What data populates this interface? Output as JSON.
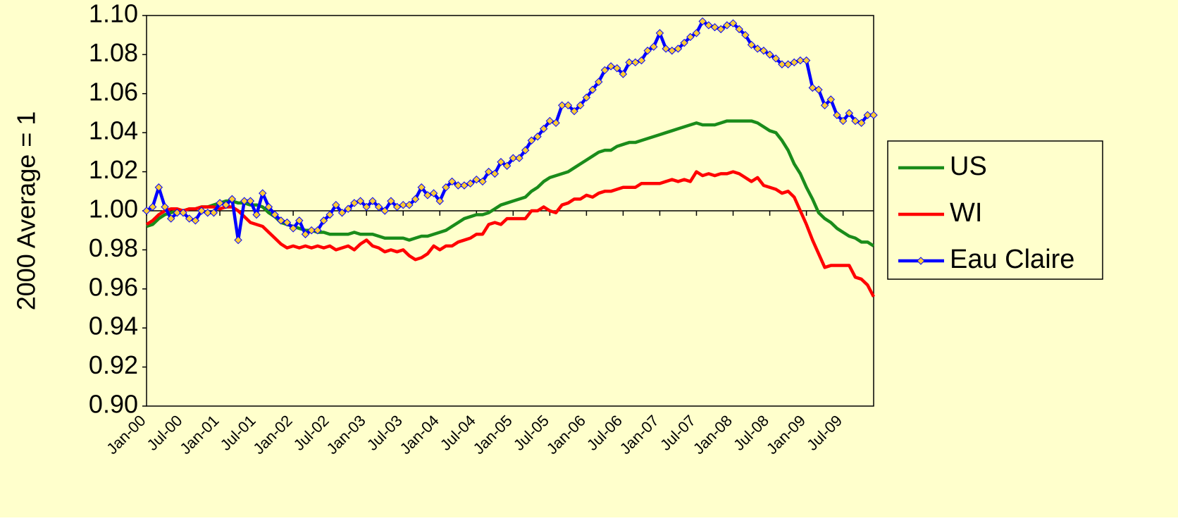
{
  "chart_data": {
    "type": "line",
    "y_label": "2000 Average = 1",
    "categories": [
      "Jan-00",
      null,
      null,
      null,
      null,
      null,
      "Jul-00",
      null,
      null,
      null,
      null,
      null,
      "Jan-01",
      null,
      null,
      null,
      null,
      null,
      "Jul-01",
      null,
      null,
      null,
      null,
      null,
      "Jan-02",
      null,
      null,
      null,
      null,
      null,
      "Jul-02",
      null,
      null,
      null,
      null,
      null,
      "Jan-03",
      null,
      null,
      null,
      null,
      null,
      "Jul-03",
      null,
      null,
      null,
      null,
      null,
      "Jan-04",
      null,
      null,
      null,
      null,
      null,
      "Jul-04",
      null,
      null,
      null,
      null,
      null,
      "Jan-05",
      null,
      null,
      null,
      null,
      null,
      "Jul-05",
      null,
      null,
      null,
      null,
      null,
      "Jan-06",
      null,
      null,
      null,
      null,
      null,
      "Jul-06",
      null,
      null,
      null,
      null,
      null,
      "Jan-07",
      null,
      null,
      null,
      null,
      null,
      "Jul-07",
      null,
      null,
      null,
      null,
      null,
      "Jan-08",
      null,
      null,
      null,
      null,
      null,
      "Jul-08",
      null,
      null,
      null,
      null,
      null,
      "Jan-09",
      null,
      null,
      null,
      null,
      null,
      "Jul-09",
      null,
      null,
      null,
      null,
      null
    ],
    "series": [
      {
        "name": "US",
        "color": "#1a8c1a",
        "values": [
          0.992,
          0.993,
          0.996,
          0.998,
          0.999,
          1.0,
          1.0,
          1.001,
          1.001,
          1.002,
          1.002,
          1.003,
          1.004,
          1.005,
          1.005,
          1.004,
          1.004,
          1.003,
          1.003,
          1.002,
          0.999,
          0.997,
          0.994,
          0.993,
          0.992,
          0.991,
          0.99,
          0.99,
          0.989,
          0.989,
          0.988,
          0.988,
          0.988,
          0.988,
          0.989,
          0.988,
          0.988,
          0.988,
          0.987,
          0.986,
          0.986,
          0.986,
          0.986,
          0.985,
          0.986,
          0.987,
          0.987,
          0.988,
          0.989,
          0.99,
          0.992,
          0.994,
          0.996,
          0.997,
          0.998,
          0.998,
          0.999,
          1.001,
          1.003,
          1.004,
          1.005,
          1.006,
          1.007,
          1.01,
          1.012,
          1.015,
          1.017,
          1.018,
          1.019,
          1.02,
          1.022,
          1.024,
          1.026,
          1.028,
          1.03,
          1.031,
          1.031,
          1.033,
          1.034,
          1.035,
          1.035,
          1.036,
          1.037,
          1.038,
          1.039,
          1.04,
          1.041,
          1.042,
          1.043,
          1.044,
          1.045,
          1.044,
          1.044,
          1.044,
          1.045,
          1.046,
          1.046,
          1.046,
          1.046,
          1.046,
          1.045,
          1.043,
          1.041,
          1.04,
          1.036,
          1.031,
          1.024,
          1.019,
          1.012,
          1.006,
          0.999,
          0.996,
          0.994,
          0.991,
          0.989,
          0.987,
          0.986,
          0.984,
          0.984,
          0.982
        ]
      },
      {
        "name": "WI",
        "color": "#ff0000",
        "values": [
          0.993,
          0.995,
          0.998,
          1.0,
          1.001,
          1.001,
          1.0,
          1.001,
          1.001,
          1.002,
          1.002,
          1.002,
          1.001,
          1.002,
          1.002,
          1.0,
          0.997,
          0.994,
          0.993,
          0.992,
          0.989,
          0.986,
          0.983,
          0.981,
          0.982,
          0.981,
          0.982,
          0.981,
          0.982,
          0.981,
          0.982,
          0.98,
          0.981,
          0.982,
          0.98,
          0.983,
          0.985,
          0.982,
          0.981,
          0.979,
          0.98,
          0.979,
          0.98,
          0.977,
          0.975,
          0.976,
          0.978,
          0.982,
          0.98,
          0.982,
          0.982,
          0.984,
          0.985,
          0.986,
          0.988,
          0.988,
          0.993,
          0.994,
          0.993,
          0.996,
          0.996,
          0.996,
          0.996,
          1.0,
          1.0,
          1.002,
          1.0,
          0.999,
          1.003,
          1.004,
          1.006,
          1.006,
          1.008,
          1.007,
          1.009,
          1.01,
          1.01,
          1.011,
          1.012,
          1.012,
          1.012,
          1.014,
          1.014,
          1.014,
          1.014,
          1.015,
          1.016,
          1.015,
          1.016,
          1.015,
          1.02,
          1.018,
          1.019,
          1.018,
          1.019,
          1.019,
          1.02,
          1.019,
          1.017,
          1.015,
          1.017,
          1.013,
          1.012,
          1.011,
          1.009,
          1.01,
          1.007,
          1.0,
          0.993,
          0.985,
          0.978,
          0.971,
          0.972,
          0.972,
          0.972,
          0.972,
          0.966,
          0.965,
          0.962,
          0.956
        ]
      },
      {
        "name": "Eau Claire",
        "color": "#0000ff",
        "marker": "diamond",
        "marker_color": "#ffcc33",
        "values": [
          1.0,
          1.002,
          1.012,
          1.002,
          0.996,
          0.999,
          0.999,
          0.996,
          0.995,
          1.0,
          0.999,
          0.999,
          1.004,
          1.003,
          1.006,
          0.985,
          1.005,
          1.005,
          0.998,
          1.009,
          1.002,
          0.998,
          0.995,
          0.994,
          0.991,
          0.995,
          0.988,
          0.99,
          0.99,
          0.995,
          0.998,
          1.003,
          0.999,
          1.001,
          1.004,
          1.005,
          1.002,
          1.005,
          1.002,
          1.0,
          1.005,
          1.002,
          1.003,
          1.003,
          1.006,
          1.012,
          1.008,
          1.009,
          1.005,
          1.012,
          1.015,
          1.013,
          1.013,
          1.014,
          1.016,
          1.015,
          1.02,
          1.019,
          1.025,
          1.023,
          1.027,
          1.027,
          1.031,
          1.036,
          1.038,
          1.042,
          1.046,
          1.045,
          1.054,
          1.054,
          1.051,
          1.054,
          1.058,
          1.062,
          1.066,
          1.072,
          1.074,
          1.073,
          1.07,
          1.076,
          1.076,
          1.077,
          1.082,
          1.084,
          1.091,
          1.083,
          1.082,
          1.083,
          1.086,
          1.089,
          1.091,
          1.097,
          1.095,
          1.094,
          1.093,
          1.095,
          1.096,
          1.093,
          1.09,
          1.085,
          1.083,
          1.082,
          1.08,
          1.078,
          1.075,
          1.075,
          1.076,
          1.077,
          1.077,
          1.063,
          1.062,
          1.054,
          1.057,
          1.049,
          1.046,
          1.05,
          1.046,
          1.045,
          1.049,
          1.049
        ]
      }
    ],
    "ylim": [
      0.9,
      1.1
    ],
    "yticks": [
      {
        "value": 0.9,
        "label": "0.90"
      },
      0.92,
      0.94,
      0.96,
      0.98,
      {
        "value": 1,
        "label": "1.00"
      },
      1.02,
      1.04,
      1.06,
      1.08,
      {
        "value": 1.1,
        "label": "1.10"
      }
    ],
    "x_axis_crosses": 1,
    "legend": "right",
    "background": "#ffffcc"
  }
}
